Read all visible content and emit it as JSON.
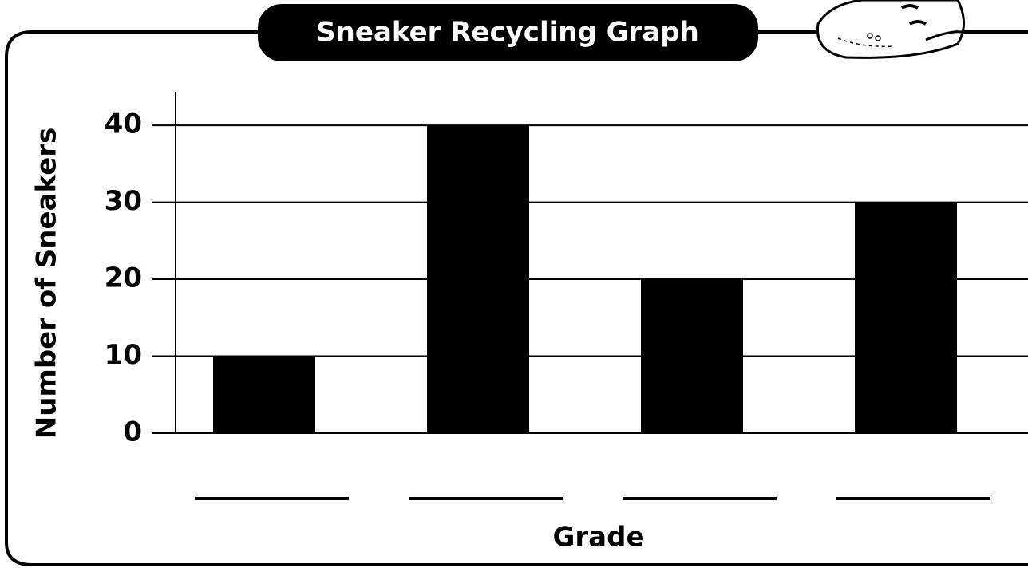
{
  "chart_data": {
    "type": "bar",
    "title": "Sneaker Recycling Graph",
    "y_label": "Number of Sneakers",
    "x_label": "Grade",
    "categories": [
      null,
      null,
      null,
      null
    ],
    "values": [
      10,
      40,
      20,
      30
    ],
    "color": "#000000",
    "ylim": [
      0,
      44
    ],
    "yticks": [
      0,
      10,
      20,
      30,
      40
    ],
    "grid": true
  }
}
